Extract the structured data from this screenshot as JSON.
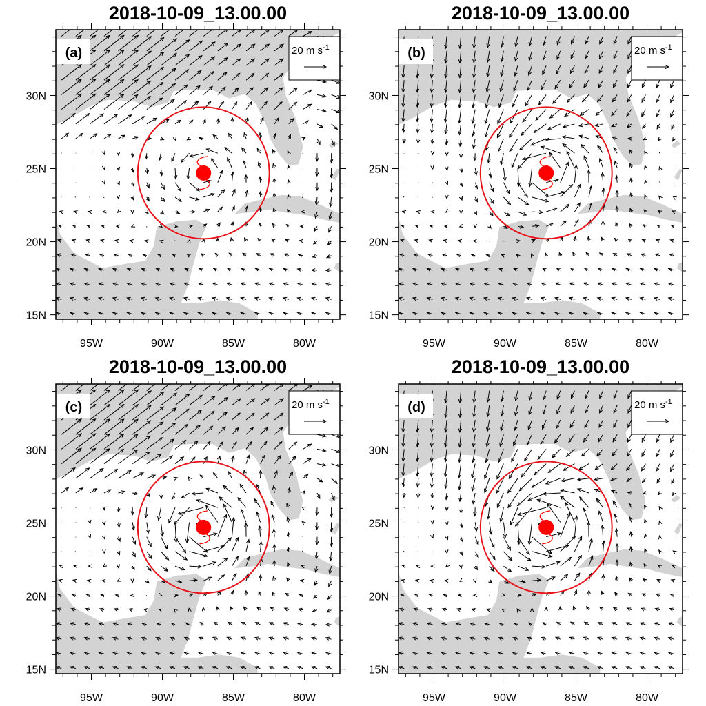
{
  "figure": {
    "colors": {
      "land": "#d3d3d3",
      "ocean": "#ffffff",
      "vector": "#000000",
      "circle": "#e8131b",
      "storm_symbol": "#ff0000",
      "frame": "#000000"
    },
    "reference_vector": {
      "label": "20 m s",
      "superscript": "-1",
      "magnitude": 20
    },
    "x_axis": {
      "tick_labels": [
        "95W",
        "90W",
        "85W",
        "80W"
      ],
      "tick_values": [
        -95,
        -90,
        -85,
        -80
      ],
      "range": [
        -97.5,
        -77.5
      ]
    },
    "y_axis": {
      "tick_labels": [
        "15N",
        "20N",
        "25N",
        "30N"
      ],
      "tick_values": [
        15,
        20,
        25,
        30
      ],
      "range": [
        14.7,
        34.5
      ]
    },
    "storm_center": {
      "lon": -87.1,
      "lat": 24.7
    },
    "search_circle_radius_deg": 4.5,
    "storm_icon": "hurricane-symbol-icon"
  },
  "chart_data": [
    {
      "type": "vector-field",
      "panel_label": "(a)",
      "title": "2018-10-09_13.00.00",
      "vortex_strength": 0.6,
      "background_flow": "strong southwesterly flow north of 26N; weak easterlies elsewhere"
    },
    {
      "type": "vector-field",
      "panel_label": "(b)",
      "title": "2018-10-09_13.00.00",
      "vortex_strength": 1.0,
      "background_flow": "weak northerly flow north of 26N; compact cyclonic vortex"
    },
    {
      "type": "vector-field",
      "panel_label": "(c)",
      "title": "2018-10-09_13.00.00",
      "vortex_strength": 1.1,
      "background_flow": "strong southwesterly flow north of 26N; strong cyclonic vortex"
    },
    {
      "type": "vector-field",
      "panel_label": "(d)",
      "title": "2018-10-09_13.00.00",
      "vortex_strength": 1.2,
      "background_flow": "northerly flow north of 26N; strong cyclonic vortex"
    }
  ]
}
